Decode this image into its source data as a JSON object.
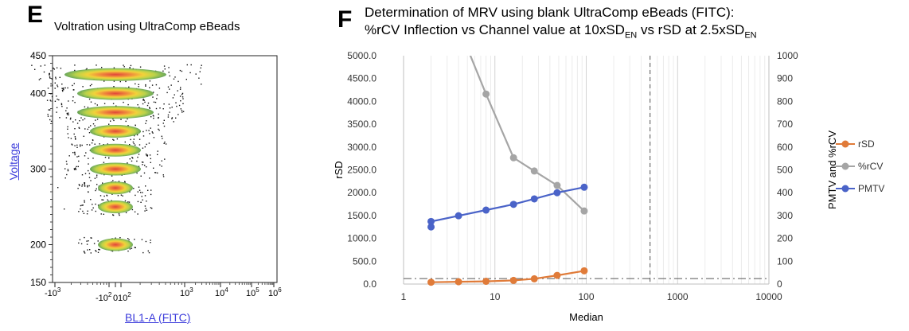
{
  "panels": {
    "e": {
      "letter": "E",
      "title": "Voltration using UltraComp eBeads",
      "ylabel": "Voltage",
      "xlabel": "BL1-A (FITC)"
    },
    "f": {
      "letter": "F",
      "title_line1": "Determination of MRV using blank UltraComp eBeads (FITC):",
      "title_line2_a": "%rCV Inflection vs Channel value at 10xSD",
      "title_line2_sub1": "EN",
      "title_line2_b": " vs rSD at 2.5xSD",
      "title_line2_sub2": "EN"
    }
  },
  "chart_data": [
    {
      "type": "scatter",
      "title": "Voltration using UltraComp eBeads",
      "xlabel": "BL1-A (FITC)",
      "ylabel": "Voltage",
      "xscale": "biexponential",
      "ylim": [
        150,
        450
      ],
      "yticks": [
        {
          "v": 150,
          "label": "150"
        },
        {
          "v": 200,
          "label": "200"
        },
        {
          "v": 300,
          "label": "300"
        },
        {
          "v": 400,
          "label": "400"
        },
        {
          "v": 450,
          "label": "450"
        }
      ],
      "xticks": [
        {
          "label": "-10",
          "sup": "3"
        },
        {
          "label": "-10",
          "sup": "2"
        },
        {
          "label": "0",
          "sup": ""
        },
        {
          "label": "10",
          "sup": "2"
        },
        {
          "label": "10",
          "sup": "3"
        },
        {
          "label": "10",
          "sup": "4"
        },
        {
          "label": "10",
          "sup": "5"
        },
        {
          "label": "10",
          "sup": "6"
        }
      ],
      "populations": [
        {
          "voltage": 200,
          "x_center": 0,
          "spread": "narrow"
        },
        {
          "voltage": 250,
          "x_center": 0,
          "spread": "narrow"
        },
        {
          "voltage": 275,
          "x_center": 0,
          "spread": "narrow"
        },
        {
          "voltage": 300,
          "x_center": 0,
          "spread": "medium"
        },
        {
          "voltage": 325,
          "x_center": 0,
          "spread": "medium"
        },
        {
          "voltage": 350,
          "x_center": 0,
          "spread": "medium"
        },
        {
          "voltage": 375,
          "x_center": 0,
          "spread": "wide"
        },
        {
          "voltage": 400,
          "x_center": 0,
          "spread": "wide"
        },
        {
          "voltage": 425,
          "x_center": 0,
          "spread": "very wide"
        }
      ]
    },
    {
      "type": "line",
      "xlabel": "Median",
      "ylabel": "rSD",
      "y2label": "PMTV and %rCV",
      "xscale": "log",
      "xlim": [
        1,
        10000
      ],
      "xticks": [
        "1",
        "10",
        "100",
        "1000",
        "10000"
      ],
      "ylim": [
        0,
        5000
      ],
      "yticks": [
        "0.0",
        "500.0",
        "1000.0",
        "1500.0",
        "2000.0",
        "2500.0",
        "3000.0",
        "3500.0",
        "4000.0",
        "4500.0",
        "5000.0"
      ],
      "y2lim": [
        0,
        1000
      ],
      "y2ticks": [
        "0",
        "100",
        "200",
        "300",
        "400",
        "500",
        "600",
        "700",
        "800",
        "900",
        "1000"
      ],
      "legend_position": "right",
      "series": [
        {
          "name": "rSD",
          "axis": "left",
          "color": "#e07b39",
          "points": [
            [
              2,
              40
            ],
            [
              4,
              50
            ],
            [
              8,
              60
            ],
            [
              16,
              80
            ],
            [
              27,
              115
            ],
            [
              48,
              190
            ],
            [
              95,
              290
            ]
          ]
        },
        {
          "name": "%rCV",
          "axis": "right",
          "color": "#a5a5a5",
          "points": [
            [
              5.4,
              1000
            ],
            [
              8,
              832
            ],
            [
              16,
              553
            ],
            [
              27,
              495
            ],
            [
              48,
              432
            ],
            [
              95,
              320
            ]
          ]
        },
        {
          "name": "PMTV",
          "axis": "right",
          "color": "#4a63c8",
          "points": [
            [
              2,
              250
            ],
            [
              2,
              274
            ],
            [
              4,
              299
            ],
            [
              8,
              324
            ],
            [
              16,
              349
            ],
            [
              27,
              373
            ],
            [
              48,
              400
            ],
            [
              95,
              424
            ]
          ]
        }
      ],
      "reference_lines": [
        {
          "orientation": "vertical",
          "x": 500,
          "style": "dashed"
        },
        {
          "orientation": "horizontal",
          "y": 120,
          "style": "dash-dot"
        }
      ]
    }
  ]
}
